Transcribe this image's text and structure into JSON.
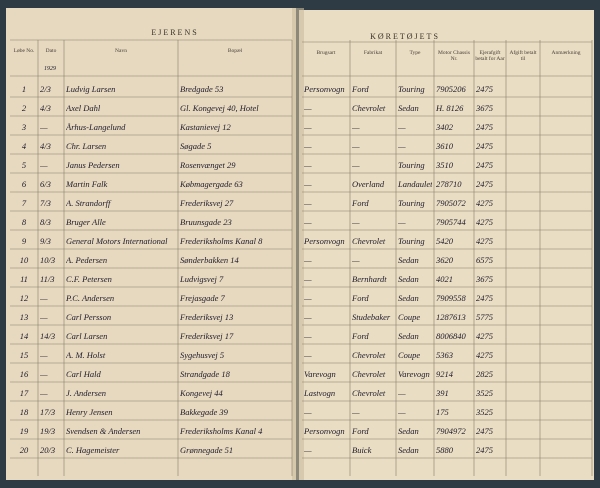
{
  "header": {
    "left_title": "EJERENS",
    "right_title": "KØRETØJETS",
    "year": "1929"
  },
  "columns": [
    "Løbe No.",
    "Dato",
    "Navn",
    "Bopæl",
    "Brugsart",
    "Fabrikat",
    "Type",
    "Motor Chassis Nr.",
    "Ejerafgift betalt for Aar",
    "Afgift betalt til",
    "Anmærkning"
  ],
  "rows": [
    [
      "1",
      "2/3",
      "Ludvig Larsen",
      "Bredgade 53",
      "Personvogn",
      "Ford",
      "Touring",
      "7905206",
      "2475"
    ],
    [
      "2",
      "4/3",
      "Axel Dahl",
      "Gl. Kongevej 40, Hotel",
      "—",
      "Chevrolet",
      "Sedan",
      "H. 8126",
      "3675"
    ],
    [
      "3",
      "—",
      "Århus-Langelund",
      "Kastanievej 12",
      "—",
      "—",
      "—",
      "3402",
      "2475"
    ],
    [
      "4",
      "4/3",
      "Chr. Larsen",
      "Søgade 5",
      "—",
      "—",
      "—",
      "3610",
      "2475"
    ],
    [
      "5",
      "—",
      "Janus Pedersen",
      "Rosenvænget 29",
      "—",
      "—",
      "Touring",
      "3510",
      "2475"
    ],
    [
      "6",
      "6/3",
      "Martin Falk",
      "Købmagergade 63",
      "—",
      "Overland",
      "Landaulet",
      "278710",
      "2475"
    ],
    [
      "7",
      "7/3",
      "A. Strandorff",
      "Frederiksvej 27",
      "—",
      "Ford",
      "Touring",
      "7905072",
      "4275"
    ],
    [
      "8",
      "8/3",
      "Bruger Alle",
      "Bruunsgade 23",
      "—",
      "—",
      "—",
      "7905744",
      "4275"
    ],
    [
      "9",
      "9/3",
      "General Motors International",
      "Frederiksholms Kanal 8",
      "Personvogn",
      "Chevrolet",
      "Touring",
      "5420",
      "4275"
    ],
    [
      "10",
      "10/3",
      "A. Pedersen",
      "Sønderbakken 14",
      "—",
      "—",
      "Sedan",
      "3620",
      "6575"
    ],
    [
      "11",
      "11/3",
      "C.F. Petersen",
      "Ludvigsvej 7",
      "—",
      "Bernhardt",
      "Sedan",
      "4021",
      "3675"
    ],
    [
      "12",
      "—",
      "P.C. Andersen",
      "Frejasgade 7",
      "—",
      "Ford",
      "Sedan",
      "7909558",
      "2475"
    ],
    [
      "13",
      "—",
      "Carl Persson",
      "Frederiksvej 13",
      "—",
      "Studebaker",
      "Coupe",
      "1287613",
      "5775"
    ],
    [
      "14",
      "14/3",
      "Carl Larsen",
      "Frederiksvej 17",
      "—",
      "Ford",
      "Sedan",
      "8006840",
      "4275"
    ],
    [
      "15",
      "—",
      "A. M. Holst",
      "Sygehusvej 5",
      "—",
      "Chevrolet",
      "Coupe",
      "5363",
      "4275"
    ],
    [
      "16",
      "—",
      "Carl Hald",
      "Strandgade 18",
      "Varevogn",
      "Chevrolet",
      "Varevogn",
      "9214",
      "2825"
    ],
    [
      "17",
      "—",
      "J. Andersen",
      "Kongevej 44",
      "Lastvogn",
      "Chevrolet",
      "—",
      "391",
      "3525"
    ],
    [
      "18",
      "17/3",
      "Henry Jensen",
      "Bakkegade 39",
      "—",
      "—",
      "—",
      "175",
      "3525"
    ],
    [
      "19",
      "19/3",
      "Svendsen & Andersen",
      "Frederiksholms Kanal 4",
      "Personvogn",
      "Ford",
      "Sedan",
      "7904972",
      "2475"
    ],
    [
      "20",
      "20/3",
      "C. Hagemeister",
      "Grønnegade 51",
      "—",
      "Buick",
      "Sedan",
      "5880",
      "2475"
    ]
  ]
}
